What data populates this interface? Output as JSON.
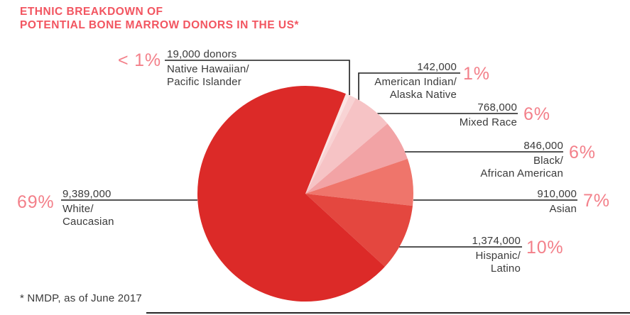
{
  "title": {
    "line1": "ETHNIC BREAKDOWN OF",
    "line2": "POTENTIAL BONE MARROW DONORS IN THE US*"
  },
  "footnote": "* NMDP, as of June 2017",
  "colors": {
    "accent_title": "#F25560",
    "accent_percent": "#F3808A",
    "text_dark": "#3A3A3A",
    "leader_line": "#1D1D1D",
    "divider": "#262626"
  },
  "chart_data": {
    "type": "pie",
    "title": "ETHNIC BREAKDOWN OF POTENTIAL BONE MARROW DONORS IN THE US*",
    "source_note": "* NMDP, as of June 2017",
    "legend_position": "callout-labels",
    "units": "donors",
    "total_label_note": "percent labels shown beside each callout",
    "slices": [
      {
        "id": "native-hawaiian-pacific-islander",
        "name_line1": "Native Hawaiian/",
        "name_line2": "Pacific Islander",
        "donors": 19000,
        "donors_label": "19,000 donors",
        "percent": 0.6,
        "percent_label": "< 1%",
        "color": "#FBE5E4"
      },
      {
        "id": "american-indian-alaska-native",
        "name_line1": "American Indian/",
        "name_line2": "Alaska Native",
        "donors": 142000,
        "donors_label": "142,000",
        "percent": 1,
        "percent_label": "1%",
        "color": "#F8D3D4"
      },
      {
        "id": "mixed-race",
        "name_line1": "Mixed Race",
        "name_line2": "",
        "donors": 768000,
        "donors_label": "768,000",
        "percent": 6,
        "percent_label": "6%",
        "color": "#F6C3C5"
      },
      {
        "id": "black-african-american",
        "name_line1": "Black/",
        "name_line2": "African American",
        "donors": 846000,
        "donors_label": "846,000",
        "percent": 6,
        "percent_label": "6%",
        "color": "#F2A3A5"
      },
      {
        "id": "asian",
        "name_line1": "Asian",
        "name_line2": "",
        "donors": 910000,
        "donors_label": "910,000",
        "percent": 7,
        "percent_label": "7%",
        "color": "#EF756B"
      },
      {
        "id": "hispanic-latino",
        "name_line1": "Hispanic/",
        "name_line2": "Latino",
        "donors": 1374000,
        "donors_label": "1,374,000",
        "percent": 10,
        "percent_label": "10%",
        "color": "#E4473F"
      },
      {
        "id": "white-caucasian",
        "name_line1": "White/",
        "name_line2": "Caucasian",
        "donors": 9389000,
        "donors_label": "9,389,000",
        "percent": 69,
        "percent_label": "69%",
        "color": "#DC2A28"
      }
    ]
  }
}
